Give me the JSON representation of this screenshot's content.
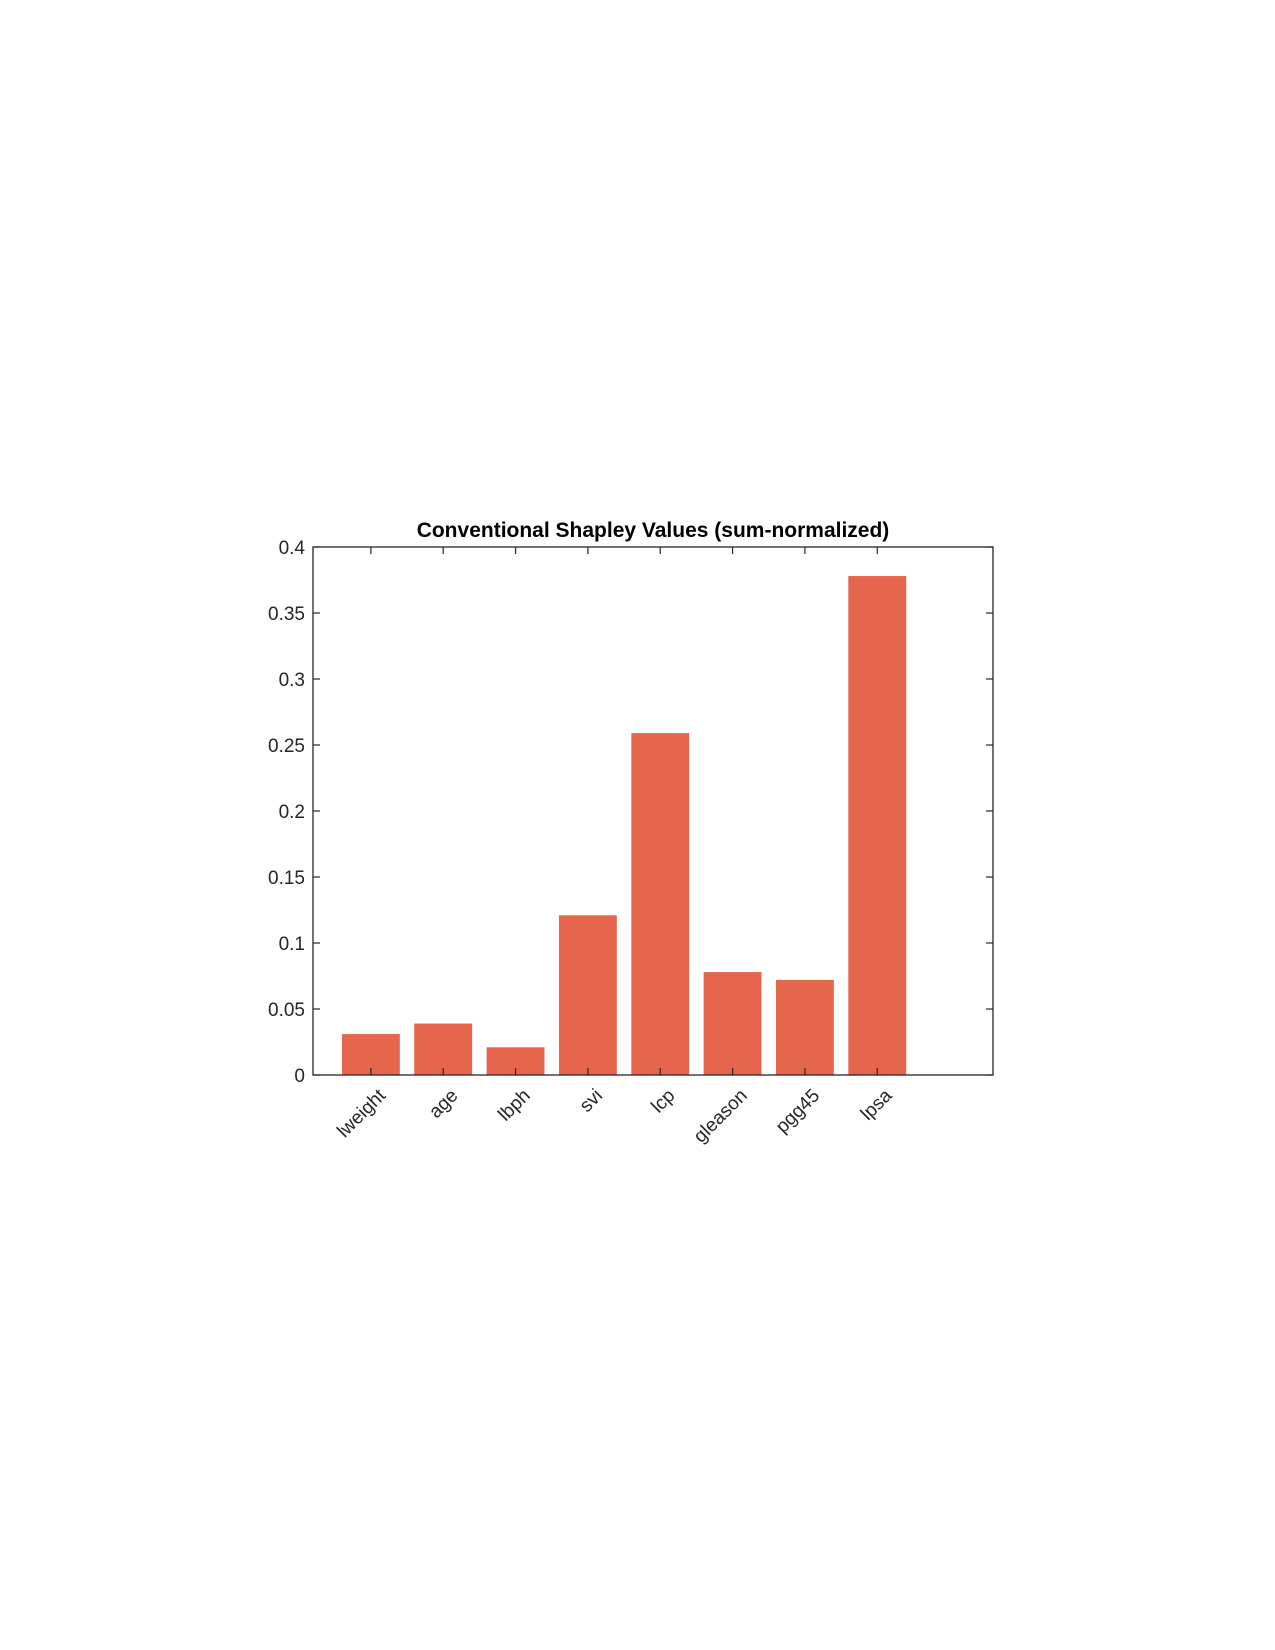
{
  "chart_data": {
    "type": "bar",
    "title": "Conventional Shapley Values (sum-normalized)",
    "xlabel": "",
    "ylabel": "",
    "categories": [
      "lweight",
      "age",
      "lbph",
      "svi",
      "lcp",
      "gleason",
      "pgg45",
      "lpsa"
    ],
    "values": [
      0.031,
      0.039,
      0.021,
      0.121,
      0.259,
      0.078,
      0.072,
      0.378
    ],
    "ylim": [
      0,
      0.4
    ],
    "yticks": [
      "0",
      "0.05",
      "0.1",
      "0.15",
      "0.2",
      "0.25",
      "0.3",
      "0.35",
      "0.4"
    ],
    "xlim": [
      0.2,
      9.6
    ],
    "grid": false,
    "legend": "none",
    "colors": {
      "bar": "#E5664D",
      "axis": "#262626"
    }
  }
}
